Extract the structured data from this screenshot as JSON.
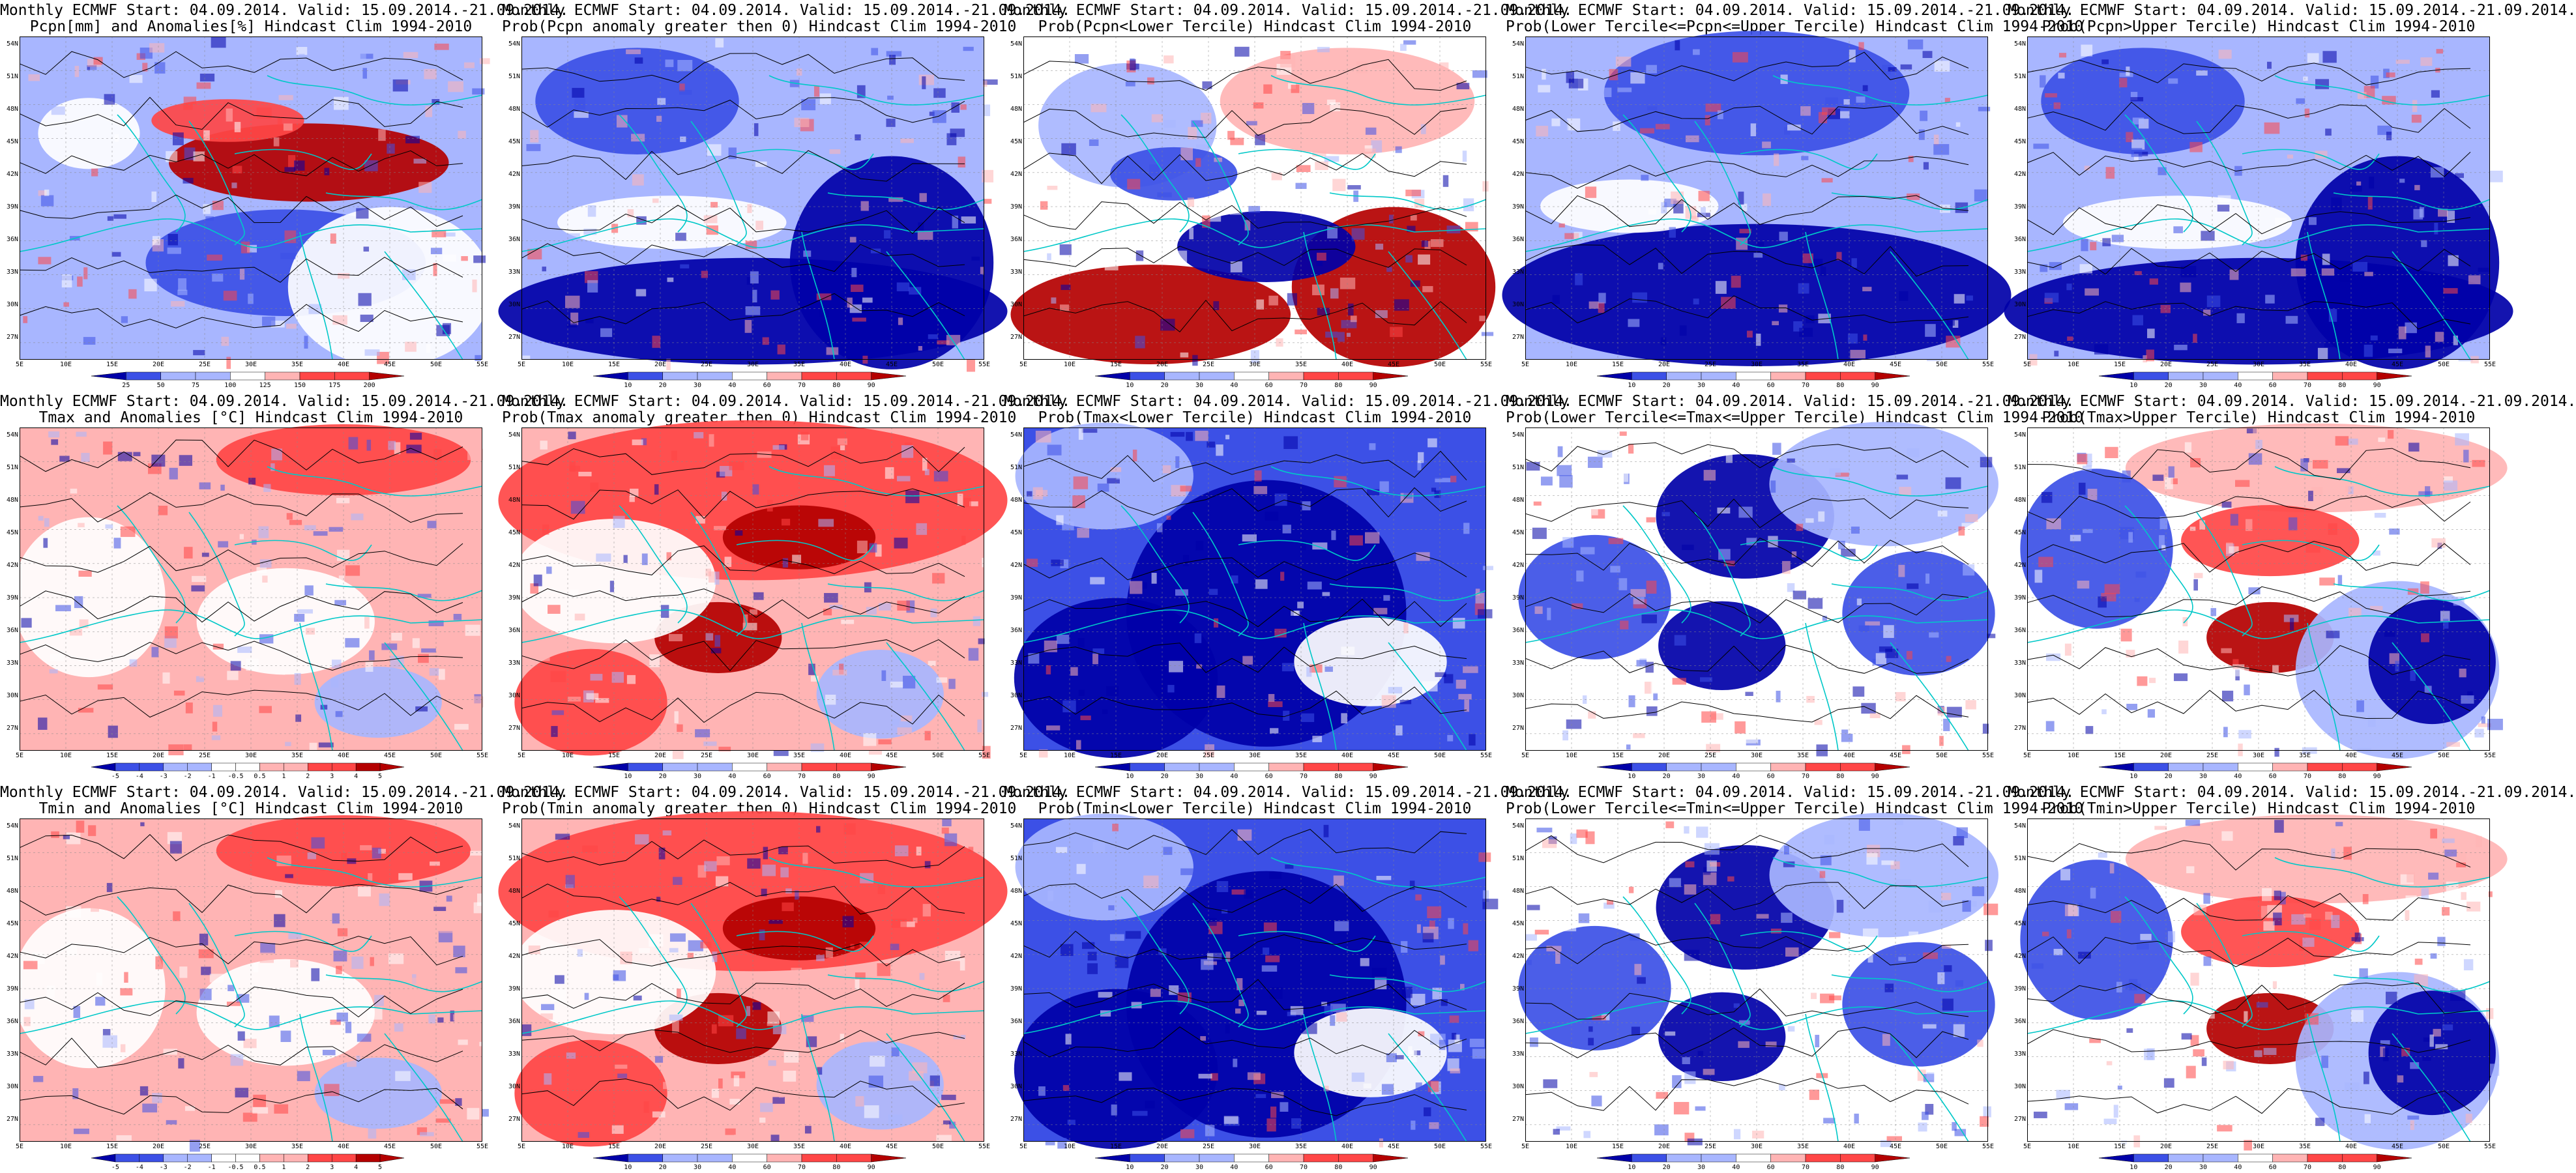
{
  "figure": {
    "header_common": "Monthly ECMWF Start: 04.09.2014. Valid: 15.09.2014.-21.09.2014.",
    "lat_labels": [
      "54N",
      "51N",
      "48N",
      "45N",
      "42N",
      "39N",
      "36N",
      "33N",
      "30N",
      "27N"
    ],
    "lon_labels": [
      "5E",
      "10E",
      "15E",
      "20E",
      "25E",
      "30E",
      "35E",
      "40E",
      "45E",
      "50E",
      "55E"
    ],
    "colors": {
      "deep_blue": "#0000a8",
      "mid_blue": "#3c50e6",
      "light_blue": "#a8b6ff",
      "white": "#ffffff",
      "light_red": "#ffb4b4",
      "mid_red": "#ff4646",
      "deep_red": "#b40000",
      "coast": "#00c8c8",
      "contour": "#000000"
    },
    "colorbars": {
      "anom_pcpn": [
        "25",
        "50",
        "75",
        "100",
        "125",
        "150",
        "175",
        "200"
      ],
      "anom_temp": [
        "-5",
        "-4",
        "-3",
        "-2",
        "-1",
        "-0.5",
        "0.5",
        "1",
        "2",
        "3",
        "4",
        "5"
      ],
      "prob": [
        "10",
        "20",
        "30",
        "40",
        "60",
        "70",
        "80",
        "90"
      ]
    },
    "rows": [
      {
        "variable": "Pcpn",
        "panels": [
          {
            "line1": "Monthly ECMWF Start: 04.09.2014. Valid: 15.09.2014.-21.09.2014.",
            "line2": "Pcpn[mm] and Anomalies[%] Hindcast Clim 1994-2010",
            "type": "anom_pcpn",
            "style": "pcpn_anom"
          },
          {
            "line1": "Monthly ECMWF Start: 04.09.2014. Valid: 15.09.2014.-21.09.2014.",
            "line2": "Prob(Pcpn anomaly greater then 0) Hindcast Clim 1994-2010",
            "type": "prob",
            "style": "blue_south"
          },
          {
            "line1": "Monthly ECMWF Start: 04.09.2014. Valid: 15.09.2014.-21.09.2014.",
            "line2": "Prob(Pcpn<Lower Tercile) Hindcast Clim 1994-2010",
            "type": "prob",
            "style": "red_south"
          },
          {
            "line1": "Monthly ECMWF Start: 04.09.2014. Valid: 15.09.2014.-21.09.2014.",
            "line2": "Prob(Lower Tercile<=Pcpn<=Upper Tercile) Hindcast Clim 1994-2010",
            "type": "prob",
            "style": "blue_all"
          },
          {
            "line1": "Monthly ECMWF Start: 04.09.2014. Valid: 15.09.2014.-21.09.2014.",
            "line2": "Prob(Pcpn>Upper Tercile) Hindcast Clim 1994-2010",
            "type": "prob",
            "style": "blue_south"
          }
        ]
      },
      {
        "variable": "Tmax",
        "panels": [
          {
            "line1": "Monthly ECMWF Start: 04.09.2014. Valid: 15.09.2014.-21.09.2014.",
            "line2": "Tmax and Anomalies [°C] Hindcast Clim 1994-2010",
            "type": "anom_temp",
            "style": "pale_red"
          },
          {
            "line1": "Monthly ECMWF Start: 04.09.2014. Valid: 15.09.2014.-21.09.2014.",
            "line2": "Prob(Tmax anomaly greater then 0) Hindcast Clim 1994-2010",
            "type": "prob",
            "style": "red_hot"
          },
          {
            "line1": "Monthly ECMWF Start: 04.09.2014. Valid: 15.09.2014.-21.09.2014.",
            "line2": "Prob(Tmax<Lower Tercile) Hindcast Clim 1994-2010",
            "type": "prob",
            "style": "blue_deep"
          },
          {
            "line1": "Monthly ECMWF Start: 04.09.2014. Valid: 15.09.2014.-21.09.2014.",
            "line2": "Prob(Lower Tercile<=Tmax<=Upper Tercile) Hindcast Clim 1994-2010",
            "type": "prob",
            "style": "blue_mixed"
          },
          {
            "line1": "Monthly ECMWF Start: 04.09.2014. Valid: 15.09.2014.-21.09.2014.",
            "line2": "Prob(Tmax>Upper Tercile) Hindcast Clim 1994-2010",
            "type": "prob",
            "style": "mixed_red"
          }
        ]
      },
      {
        "variable": "Tmin",
        "panels": [
          {
            "line1": "Monthly ECMWF Start: 04.09.2014. Valid: 15.09.2014.-21.09.2014.",
            "line2": "Tmin and Anomalies [°C] Hindcast Clim 1994-2010",
            "type": "anom_temp",
            "style": "pale_red"
          },
          {
            "line1": "Monthly ECMWF Start: 04.09.2014. Valid: 15.09.2014.-21.09.2014.",
            "line2": "Prob(Tmin anomaly greater then 0) Hindcast Clim 1994-2010",
            "type": "prob",
            "style": "red_hot"
          },
          {
            "line1": "Monthly ECMWF Start: 04.09.2014. Valid: 15.09.2014.-21.09.2014.",
            "line2": "Prob(Tmin<Lower Tercile) Hindcast Clim 1994-2010",
            "type": "prob",
            "style": "blue_deep"
          },
          {
            "line1": "Monthly ECMWF Start: 04.09.2014. Valid: 15.09.2014.-21.09.2014.",
            "line2": "Prob(Lower Tercile<=Tmin<=Upper Tercile) Hindcast Clim 1994-2010",
            "type": "prob",
            "style": "blue_mixed"
          },
          {
            "line1": "Monthly ECMWF Start: 04.09.2014. Valid: 15.09.2014.-21.09.2014.",
            "line2": "Prob(Tmin>Upper Tercile) Hindcast Clim 1994-2010",
            "type": "prob",
            "style": "mixed_red"
          }
        ]
      }
    ]
  }
}
